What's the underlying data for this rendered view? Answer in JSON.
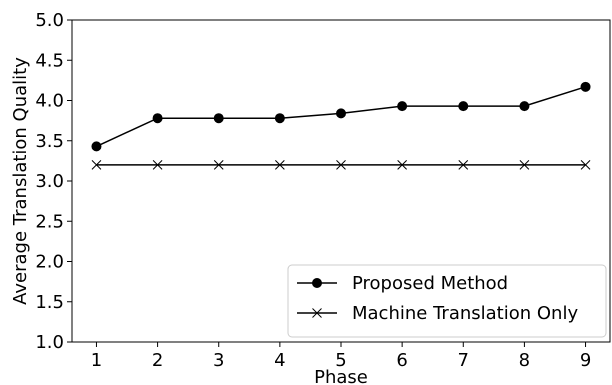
{
  "chart_data": {
    "type": "line",
    "x": [
      1,
      2,
      3,
      4,
      5,
      6,
      7,
      8,
      9
    ],
    "series": [
      {
        "name": "Proposed Method",
        "values": [
          3.43,
          3.78,
          3.78,
          3.78,
          3.84,
          3.93,
          3.93,
          3.93,
          4.17
        ],
        "marker": "circle",
        "color": "#000000"
      },
      {
        "name": "Machine Translation Only",
        "values": [
          3.2,
          3.2,
          3.2,
          3.2,
          3.2,
          3.2,
          3.2,
          3.2,
          3.2
        ],
        "marker": "x",
        "color": "#000000"
      }
    ],
    "title": "",
    "xlabel": "Phase",
    "ylabel": "Average Translation Quality",
    "xlim": [
      0.6,
      9.4
    ],
    "ylim": [
      1.0,
      5.0
    ],
    "x_ticks": [
      1,
      2,
      3,
      4,
      5,
      6,
      7,
      8,
      9
    ],
    "y_ticks": [
      "1.0",
      "1.5",
      "2.0",
      "2.5",
      "3.0",
      "3.5",
      "4.0",
      "4.5",
      "5.0"
    ],
    "grid": false,
    "legend_position": "lower-right"
  }
}
